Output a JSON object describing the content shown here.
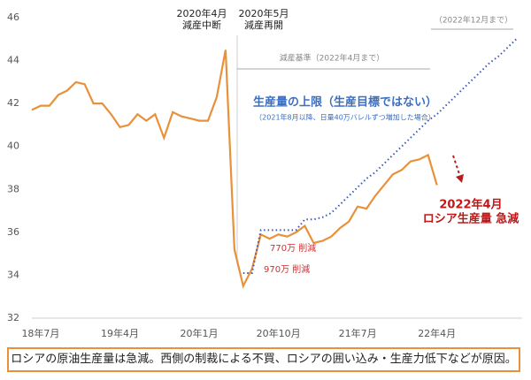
{
  "chart_data": {
    "type": "line",
    "categories": [
      null,
      "18年7月",
      null,
      null,
      null,
      null,
      null,
      null,
      null,
      null,
      "19年4月",
      null,
      null,
      null,
      null,
      null,
      null,
      null,
      null,
      "20年1月",
      null,
      null,
      null,
      null,
      null,
      null,
      null,
      null,
      "20年10月",
      null,
      null,
      null,
      null,
      null,
      null,
      null,
      null,
      "21年7月",
      null,
      null,
      null,
      null,
      null,
      null,
      null,
      null,
      "22年4月",
      null,
      null,
      null,
      null,
      null,
      null,
      null,
      null,
      null
    ],
    "series": [
      {
        "color": "#e8913a",
        "style": "solid",
        "values": [
          41.7,
          41.9,
          41.9,
          42.4,
          42.6,
          43.0,
          42.9,
          42.0,
          42.0,
          41.5,
          40.9,
          41.0,
          41.5,
          41.2,
          41.5,
          40.4,
          41.6,
          41.4,
          41.3,
          41.2,
          41.2,
          42.3,
          44.5,
          35.2,
          33.5,
          34.3,
          35.9,
          35.7,
          35.9,
          35.8,
          36.0,
          36.3,
          35.5,
          35.6,
          35.8,
          36.2,
          36.5,
          37.2,
          37.1,
          37.7,
          38.2,
          38.7,
          38.9,
          39.3,
          39.4,
          39.6,
          38.2,
          null,
          null,
          null,
          null,
          null,
          null,
          null,
          null,
          null
        ]
      },
      {
        "color": "#3b5bb5",
        "style": "dotted",
        "values": [
          null,
          null,
          null,
          null,
          null,
          null,
          null,
          null,
          null,
          null,
          null,
          null,
          null,
          null,
          null,
          null,
          null,
          null,
          null,
          null,
          null,
          null,
          null,
          null,
          34.1,
          34.1,
          36.1,
          36.1,
          36.1,
          36.1,
          36.1,
          36.6,
          36.6,
          36.7,
          36.9,
          37.3,
          37.7,
          38.1,
          38.5,
          38.8,
          39.2,
          39.6,
          40.0,
          40.4,
          40.8,
          41.2,
          41.5,
          41.9,
          42.3,
          42.7,
          43.1,
          43.5,
          43.9,
          44.2,
          44.6,
          45.0
        ]
      }
    ],
    "ylim": [
      32,
      46
    ],
    "yticks": [
      32,
      34,
      36,
      38,
      40,
      42,
      44,
      46
    ],
    "grid": false,
    "annotations": {
      "suspend": [
        "2020年4月",
        "減産中断"
      ],
      "resume": [
        "2020年5月",
        "減産再開"
      ],
      "baseline": "減産基準（2022年4月まで）",
      "dec": "（2022年12月まで）",
      "ceiling": "生産量の上限（生産目標ではない）",
      "ceiling_note": "（2021年8月以降、日量40万バレルずつ増加した場合）",
      "cut770": "770万 削減",
      "cut970": "970万 削減",
      "drop": [
        "2022年4月",
        "ロシア生産量 急減"
      ]
    }
  },
  "caption": "ロシアの原油生産量は急減。西側の制裁による不買、ロシアの囲い込み・生産力低下などが原因。"
}
